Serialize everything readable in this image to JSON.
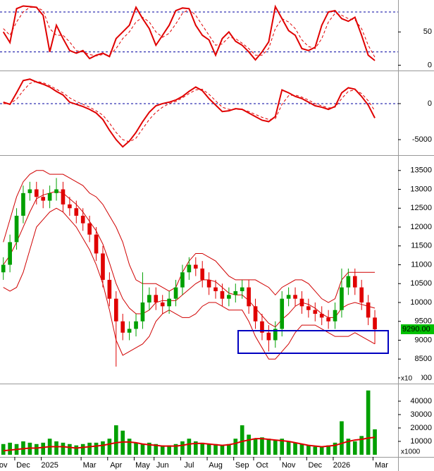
{
  "chart_data": [
    {
      "type": "line",
      "ylim": [
        -8,
        98
      ],
      "yticks": [
        0,
        50
      ],
      "levels": [
        20,
        80
      ],
      "level_color": "#0000a0",
      "series": [
        {
          "color": "#e00000",
          "values": [
            50,
            34,
            85,
            89,
            88,
            87,
            75,
            20,
            60,
            40,
            22,
            18,
            22,
            10,
            15,
            18,
            13,
            40,
            50,
            60,
            87,
            70,
            55,
            30,
            45,
            60,
            82,
            86,
            85,
            60,
            45,
            38,
            15,
            40,
            50,
            36,
            30,
            20,
            8,
            20,
            35,
            88,
            70,
            52,
            45,
            25,
            22,
            27,
            60,
            80,
            82,
            70,
            66,
            72,
            45,
            15,
            7,
            null,
            null,
            null
          ]
        },
        {
          "color": "#e00000",
          "dash": true,
          "values": [
            55,
            45,
            65,
            80,
            87,
            87,
            82,
            55,
            45,
            45,
            35,
            22,
            20,
            16,
            14,
            16,
            15,
            25,
            40,
            50,
            65,
            72,
            65,
            50,
            42,
            48,
            62,
            78,
            84,
            75,
            60,
            45,
            30,
            32,
            42,
            40,
            33,
            25,
            15,
            15,
            25,
            55,
            70,
            65,
            55,
            38,
            28,
            25,
            40,
            65,
            78,
            75,
            70,
            68,
            55,
            30,
            12,
            null,
            null,
            null
          ]
        }
      ]
    },
    {
      "type": "line",
      "ylim": [
        -7150,
        4400
      ],
      "yticks": [
        -5000,
        0
      ],
      "levels": [
        0
      ],
      "level_color": "#0000a0",
      "series": [
        {
          "color": "#e00000",
          "values": [
            200,
            -100,
            1500,
            3200,
            3400,
            3000,
            2700,
            2300,
            1700,
            1200,
            200,
            -100,
            -400,
            -800,
            -1300,
            -2200,
            -3700,
            -5000,
            -6000,
            -5200,
            -4000,
            -2500,
            -1200,
            -300,
            0,
            200,
            500,
            1000,
            1700,
            2300,
            1800,
            700,
            -200,
            -1100,
            -1000,
            -700,
            -800,
            -1300,
            -1800,
            -2300,
            -2500,
            -1800,
            1900,
            1500,
            1000,
            700,
            200,
            -300,
            -500,
            -800,
            -400,
            1500,
            2200,
            2000,
            1000,
            -200,
            -2000,
            null,
            null,
            null
          ]
        },
        {
          "color": "#e00000",
          "dash": true,
          "values": [
            0,
            0,
            600,
            1800,
            2800,
            3100,
            2900,
            2500,
            2000,
            1500,
            800,
            300,
            -100,
            -500,
            -1000,
            -1600,
            -2700,
            -4000,
            -5000,
            -5300,
            -4800,
            -3500,
            -2200,
            -1200,
            -500,
            0,
            300,
            800,
            1400,
            1900,
            2000,
            1300,
            400,
            -500,
            -800,
            -800,
            -800,
            -1100,
            -1500,
            -1900,
            -2200,
            -2100,
            -100,
            1100,
            1200,
            900,
            500,
            0,
            -300,
            -600,
            -500,
            700,
            1700,
            1900,
            1400,
            400,
            -1000,
            null,
            null,
            null
          ]
        }
      ]
    },
    {
      "type": "candlestick",
      "ylim": [
        7850,
        13870
      ],
      "yticks": [
        8000,
        8500,
        9000,
        9500,
        10000,
        10500,
        11000,
        11500,
        12000,
        12500,
        13000,
        13500
      ],
      "axis_multiplier": "x10",
      "up_color": "#00a000",
      "down_color": "#e00000",
      "open": [
        10800,
        11000,
        11600,
        12300,
        12900,
        13000,
        12800,
        12700,
        12900,
        13000,
        12600,
        12500,
        12300,
        12100,
        11800,
        11300,
        10600,
        10100,
        9500,
        9200,
        9300,
        9500,
        10000,
        10200,
        10000,
        9900,
        10100,
        10400,
        10800,
        11000,
        10900,
        10600,
        10400,
        10300,
        10100,
        10200,
        10300,
        10400,
        9900,
        9500,
        9200,
        9000,
        9300,
        10100,
        10200,
        10100,
        9900,
        9800,
        9700,
        9600,
        9500,
        9800,
        10400,
        10700,
        10400,
        10000,
        9600,
        null,
        null,
        null
      ],
      "high": [
        11200,
        11800,
        12500,
        13100,
        13200,
        13200,
        13000,
        13100,
        13300,
        13200,
        12800,
        12700,
        12500,
        12300,
        12000,
        11500,
        10800,
        10300,
        9700,
        9500,
        9700,
        10800,
        10400,
        10400,
        10200,
        10300,
        10600,
        11000,
        11200,
        11200,
        11100,
        10800,
        10600,
        10500,
        10400,
        10500,
        10600,
        10600,
        10100,
        9700,
        9400,
        9500,
        10300,
        10400,
        10400,
        10300,
        10100,
        10000,
        9900,
        9800,
        10000,
        10900,
        10900,
        10900,
        10600,
        10200,
        9800,
        null,
        null,
        null
      ],
      "low": [
        10600,
        10800,
        11400,
        12100,
        12700,
        12600,
        12500,
        12500,
        12700,
        12400,
        12300,
        12100,
        11900,
        11600,
        11100,
        10400,
        9900,
        8300,
        9000,
        9000,
        9100,
        9300,
        9800,
        9800,
        9700,
        9700,
        9900,
        10200,
        10600,
        10700,
        10400,
        10200,
        10100,
        9900,
        9900,
        10000,
        10100,
        9700,
        9300,
        9000,
        8700,
        8800,
        9100,
        9900,
        9900,
        9700,
        9600,
        9500,
        9400,
        9300,
        9300,
        9600,
        10200,
        10200,
        9800,
        9400,
        8900,
        null,
        null,
        null
      ],
      "close": [
        11000,
        11600,
        12300,
        12900,
        13000,
        12800,
        12700,
        12900,
        13000,
        12600,
        12500,
        12300,
        12100,
        11800,
        11300,
        10600,
        10100,
        9500,
        9200,
        9300,
        9500,
        10000,
        10200,
        10000,
        9900,
        10100,
        10400,
        10800,
        11000,
        10900,
        10600,
        10400,
        10300,
        10100,
        10200,
        10300,
        10400,
        9900,
        9500,
        9200,
        9000,
        9300,
        10100,
        10200,
        10100,
        9900,
        9800,
        9700,
        9600,
        9500,
        9800,
        10400,
        10700,
        10400,
        10000,
        9600,
        9290,
        null,
        null,
        null
      ],
      "bands": {
        "color": "#d00000",
        "upper": [
          11600,
          12200,
          12800,
          13200,
          13400,
          13500,
          13500,
          13400,
          13400,
          13400,
          13300,
          13200,
          13100,
          12900,
          12800,
          12600,
          12300,
          12000,
          11600,
          11000,
          10600,
          10500,
          10500,
          10500,
          10400,
          10300,
          10400,
          10800,
          11100,
          11300,
          11300,
          11200,
          11100,
          10900,
          10700,
          10600,
          10600,
          10600,
          10600,
          10500,
          10400,
          10200,
          10400,
          10500,
          10600,
          10600,
          10500,
          10300,
          10100,
          10000,
          10100,
          10600,
          10800,
          10800,
          10800,
          10800,
          10800,
          null,
          null,
          null
        ],
        "middle": [
          11000,
          11250,
          11600,
          12000,
          12400,
          12750,
          12850,
          12900,
          12950,
          12900,
          12750,
          12600,
          12400,
          12150,
          11900,
          11550,
          11050,
          10500,
          10100,
          9850,
          9700,
          9700,
          9800,
          10000,
          10050,
          10050,
          10050,
          10200,
          10350,
          10500,
          10600,
          10600,
          10550,
          10400,
          10250,
          10200,
          10200,
          10050,
          9850,
          9650,
          9450,
          9350,
          9550,
          9700,
          9900,
          10000,
          9950,
          9850,
          9700,
          9600,
          9600,
          9850,
          9950,
          10000,
          9950,
          9900,
          9850,
          null,
          null,
          null
        ],
        "lower": [
          10400,
          10300,
          10400,
          10800,
          11400,
          12000,
          12200,
          12400,
          12500,
          12400,
          12200,
          12000,
          11700,
          11400,
          11000,
          10500,
          9800,
          9000,
          8600,
          8700,
          8800,
          8900,
          9100,
          9500,
          9700,
          9800,
          9700,
          9600,
          9600,
          9700,
          9900,
          10000,
          10000,
          9900,
          9800,
          9800,
          9800,
          9500,
          9100,
          8800,
          8500,
          8500,
          8700,
          8900,
          9200,
          9400,
          9400,
          9400,
          9300,
          9200,
          9100,
          9100,
          9100,
          9200,
          9100,
          9000,
          8900,
          null,
          null,
          null
        ]
      },
      "last_price": {
        "value": 9290,
        "label": "9290.00",
        "color": "#00c000"
      }
    },
    {
      "type": "bar",
      "ylim": [
        -1600,
        52100
      ],
      "yticks": [
        10000,
        20000,
        30000,
        40000
      ],
      "axis_multiplier": "x1000",
      "color": "#00a000",
      "categories": [
        "ov",
        null,
        null,
        "Dec",
        null,
        null,
        null,
        "2025",
        null,
        null,
        null,
        null,
        null,
        "Mar",
        null,
        null,
        null,
        "Apr",
        null,
        null,
        null,
        "May",
        null,
        null,
        "Jun",
        null,
        null,
        null,
        "Jul",
        null,
        null,
        null,
        "Aug",
        null,
        null,
        null,
        "Sep",
        null,
        null,
        "Oct",
        null,
        null,
        null,
        "Nov",
        null,
        null,
        null,
        "Dec",
        null,
        null,
        null,
        "2026",
        null,
        null,
        null,
        null,
        null,
        "Mar",
        null,
        null
      ],
      "values": [
        8000,
        9000,
        8000,
        10000,
        9000,
        8000,
        9000,
        12000,
        10000,
        9000,
        8000,
        7000,
        8000,
        9000,
        9000,
        10000,
        12000,
        22000,
        18000,
        12000,
        9000,
        8000,
        9000,
        8000,
        7000,
        7000,
        8000,
        10000,
        12000,
        10000,
        9000,
        8000,
        8000,
        7000,
        8000,
        12000,
        22000,
        15000,
        12000,
        13000,
        12000,
        11000,
        12000,
        10000,
        9000,
        8000,
        7000,
        6000,
        6000,
        7000,
        9000,
        25000,
        12000,
        10000,
        14000,
        48000,
        19000,
        null,
        null,
        null
      ],
      "ma": {
        "color": "#e00000",
        "values": [
          3000,
          3500,
          4000,
          4500,
          5000,
          5000,
          5500,
          6000,
          6000,
          6000,
          5500,
          5000,
          5500,
          6000,
          6500,
          7000,
          8000,
          9000,
          9500,
          9500,
          9000,
          8000,
          7500,
          7000,
          6500,
          6500,
          6500,
          7000,
          8000,
          8500,
          8500,
          8000,
          7500,
          7000,
          7500,
          8500,
          10000,
          11000,
          12000,
          12000,
          11500,
          11000,
          10500,
          10000,
          9000,
          8000,
          7000,
          6500,
          6000,
          6500,
          7000,
          8500,
          10000,
          11000,
          11500,
          12500,
          13000,
          null,
          null,
          null
        ]
      }
    }
  ]
}
